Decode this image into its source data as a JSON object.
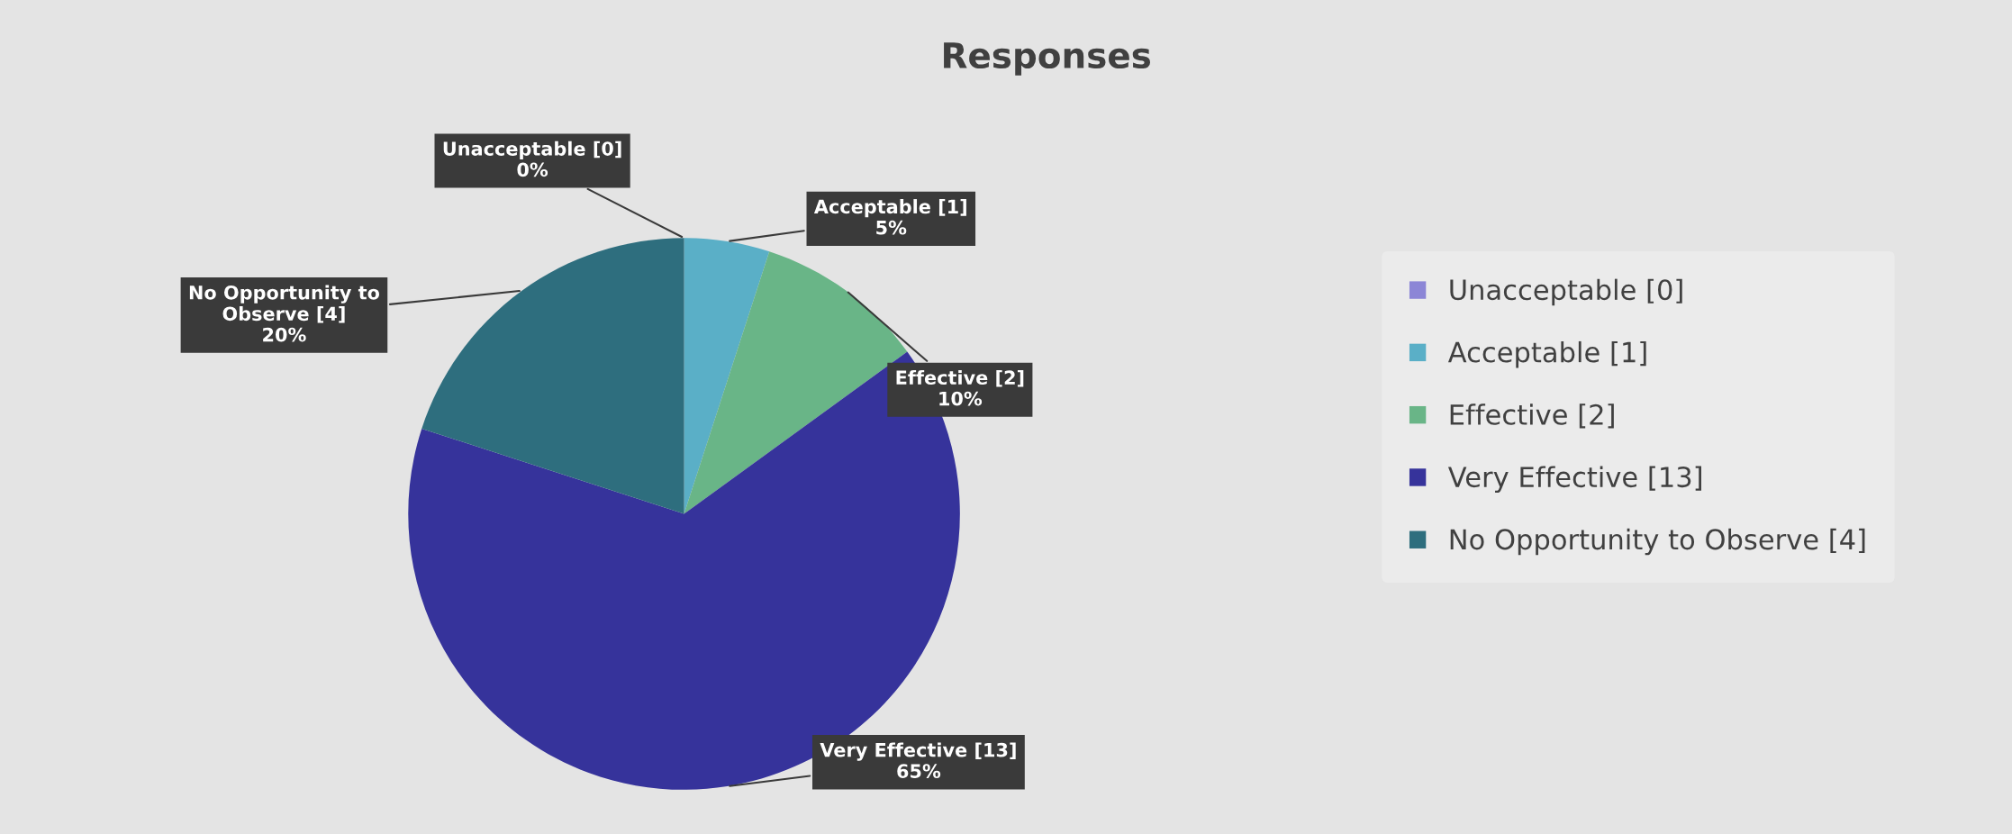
{
  "chart_data": {
    "type": "pie",
    "title": "Responses",
    "categories": [
      "Unacceptable [0]",
      "Acceptable [1]",
      "Effective [2]",
      "Very Effective [13]",
      "No Opportunity to Observe [4]"
    ],
    "values": [
      0,
      5,
      10,
      65,
      20
    ],
    "colors": [
      "#8c86d6",
      "#5aafc7",
      "#69b587",
      "#36339b",
      "#2e6e7e"
    ],
    "value_labels": [
      "Unacceptable [0]\n0%",
      "Acceptable [1]\n5%",
      "Effective [2]\n10%",
      "Very Effective [13]\n65%",
      "No Opportunity to\nObserve [4]\n20%"
    ],
    "legend": "right"
  }
}
